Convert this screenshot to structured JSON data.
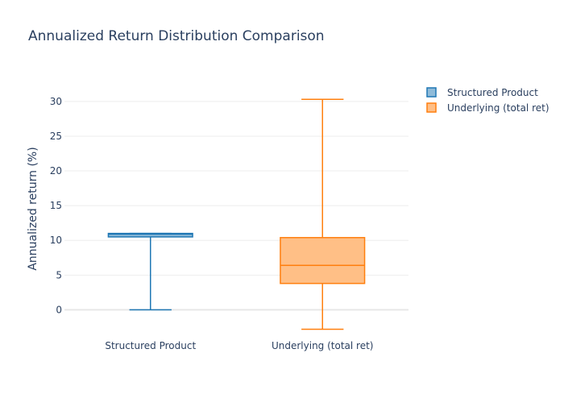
{
  "chart_data": {
    "type": "box",
    "title": "Annualized Return Distribution Comparison",
    "xlabel": "",
    "ylabel": "Annualized return (%)",
    "ylim": [
      -3.2,
      33.0
    ],
    "yticks": [
      0,
      5,
      10,
      15,
      20,
      25,
      30
    ],
    "grid": true,
    "legend_position": "top-right",
    "categories": [
      "Structured Product",
      "Underlying (total ret)"
    ],
    "series": [
      {
        "name": "Structured Product",
        "category": "Structured Product",
        "min": 0.0,
        "q1": 10.5,
        "median": 10.9,
        "q3": 11.0,
        "max": 11.0,
        "color": "#1f77b4",
        "fill": "#8fbbd9"
      },
      {
        "name": "Underlying (total ret)",
        "category": "Underlying (total ret)",
        "min": -2.8,
        "q1": 3.8,
        "median": 6.4,
        "q3": 10.4,
        "max": 30.3,
        "color": "#ff7f0e",
        "fill": "#ffbf86"
      }
    ]
  }
}
